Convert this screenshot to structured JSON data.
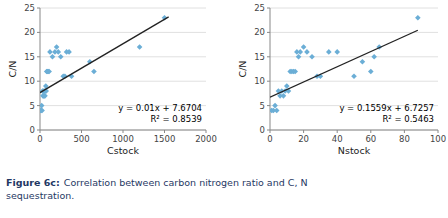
{
  "chart_data": [
    {
      "type": "scatter",
      "xlabel": "Cstock",
      "ylabel": "C/N",
      "xlim": [
        0,
        2000
      ],
      "ylim": [
        0,
        25
      ],
      "xticks": [
        0,
        500,
        1000,
        1500,
        2000
      ],
      "yticks": [
        0,
        5,
        10,
        15,
        20,
        25
      ],
      "grid": "y",
      "annotations": [
        "y = 0.01x + 7.6704",
        "R² = 0.8539"
      ],
      "series": [
        {
          "type": "scatter",
          "color": "#6BAED6",
          "marker": "diamond",
          "x": [
            10,
            15,
            20,
            25,
            30,
            35,
            40,
            45,
            50,
            55,
            60,
            65,
            70,
            75,
            80,
            90,
            100,
            110,
            120,
            150,
            180,
            200,
            220,
            250,
            280,
            300,
            320,
            350,
            380,
            600,
            650,
            1200,
            1500
          ],
          "values": [
            4,
            4,
            5,
            4,
            8,
            7,
            8,
            7,
            7,
            8,
            7,
            8,
            9,
            8,
            12,
            12,
            12,
            12,
            16,
            15,
            16,
            17,
            16,
            15,
            11,
            11,
            16,
            16,
            11,
            14,
            12,
            17,
            23
          ]
        },
        {
          "type": "line",
          "color": "#222222",
          "x": [
            0,
            1550
          ],
          "values": [
            7.6704,
            23.1704
          ]
        }
      ]
    },
    {
      "type": "scatter",
      "xlabel": "Nstock",
      "ylabel": "C/N",
      "xlim": [
        0,
        100
      ],
      "ylim": [
        0,
        25
      ],
      "xticks": [
        0,
        20,
        40,
        60,
        80,
        100
      ],
      "yticks": [
        0,
        5,
        10,
        15,
        20,
        25
      ],
      "grid": "y",
      "annotations": [
        "y = 0.1559x + 6.7257",
        "R² = 0.5463"
      ],
      "series": [
        {
          "type": "scatter",
          "color": "#6BAED6",
          "marker": "diamond",
          "x": [
            1,
            2,
            3,
            4,
            5,
            6,
            7,
            8,
            9,
            10,
            11,
            12,
            13,
            14,
            15,
            16,
            17,
            18,
            20,
            22,
            25,
            28,
            30,
            35,
            40,
            50,
            55,
            60,
            62,
            65,
            88
          ],
          "values": [
            4,
            4,
            5,
            4,
            8,
            7,
            8,
            7,
            8,
            9,
            8,
            12,
            12,
            12,
            12,
            16,
            15,
            16,
            17,
            16,
            15,
            11,
            11,
            16,
            16,
            11,
            14,
            12,
            15,
            17,
            23
          ]
        },
        {
          "type": "line",
          "color": "#222222",
          "x": [
            0,
            88
          ],
          "values": [
            6.7257,
            20.4449
          ]
        }
      ]
    }
  ],
  "caption": [
    "Figure 6c:",
    "Correlation between carbon nitrogen ratio and C, N",
    "sequestration."
  ]
}
